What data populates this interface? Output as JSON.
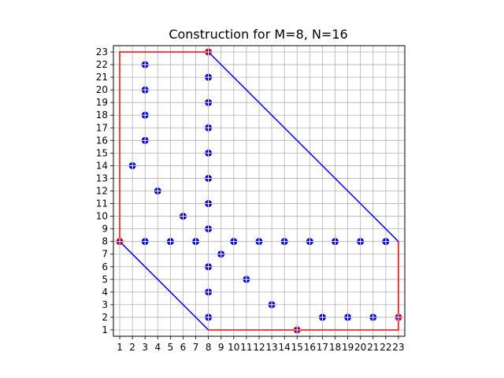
{
  "chart_data": {
    "type": "scatter",
    "title": "Construction for M=8, N=16",
    "xlabel": "",
    "ylabel": "",
    "xlim": [
      0.5,
      23.5
    ],
    "ylim": [
      0.5,
      23.5
    ],
    "xticks": [
      1,
      2,
      3,
      4,
      5,
      6,
      7,
      8,
      9,
      10,
      11,
      12,
      13,
      14,
      15,
      16,
      17,
      18,
      19,
      20,
      21,
      22,
      23
    ],
    "yticks": [
      1,
      2,
      3,
      4,
      5,
      6,
      7,
      8,
      9,
      10,
      11,
      12,
      13,
      14,
      15,
      16,
      17,
      18,
      19,
      20,
      21,
      22,
      23
    ],
    "grid": true,
    "legend": "none",
    "lines": [
      {
        "color": "#ff0000",
        "points": [
          [
            1,
            8
          ],
          [
            1,
            23
          ],
          [
            8,
            23
          ]
        ]
      },
      {
        "color": "#ff0000",
        "points": [
          [
            8,
            1
          ],
          [
            23,
            1
          ],
          [
            23,
            8
          ]
        ]
      },
      {
        "color": "#0000ff",
        "points": [
          [
            8,
            23
          ],
          [
            23,
            8
          ]
        ]
      },
      {
        "color": "#0000ff",
        "points": [
          [
            1,
            8
          ],
          [
            8,
            1
          ]
        ]
      }
    ],
    "points": {
      "color": "#0000cc",
      "marker": "circle-plus",
      "xy": [
        [
          1,
          8
        ],
        [
          3,
          8
        ],
        [
          5,
          8
        ],
        [
          7,
          8
        ],
        [
          10,
          8
        ],
        [
          12,
          8
        ],
        [
          14,
          8
        ],
        [
          16,
          8
        ],
        [
          18,
          8
        ],
        [
          20,
          8
        ],
        [
          22,
          8
        ],
        [
          8,
          23
        ],
        [
          8,
          21
        ],
        [
          8,
          19
        ],
        [
          8,
          17
        ],
        [
          8,
          15
        ],
        [
          8,
          13
        ],
        [
          8,
          11
        ],
        [
          8,
          9
        ],
        [
          8,
          6
        ],
        [
          8,
          4
        ],
        [
          8,
          2
        ],
        [
          3,
          22
        ],
        [
          3,
          20
        ],
        [
          3,
          18
        ],
        [
          3,
          16
        ],
        [
          2,
          14
        ],
        [
          4,
          12
        ],
        [
          6,
          10
        ],
        [
          9,
          7
        ],
        [
          11,
          5
        ],
        [
          13,
          3
        ],
        [
          15,
          1
        ],
        [
          17,
          2
        ],
        [
          19,
          2
        ],
        [
          21,
          2
        ],
        [
          23,
          2
        ]
      ]
    },
    "highlight_points": {
      "color": "#ff0000",
      "xy": [
        [
          1,
          8
        ],
        [
          8,
          23
        ],
        [
          15,
          1
        ],
        [
          23,
          2
        ]
      ]
    }
  }
}
